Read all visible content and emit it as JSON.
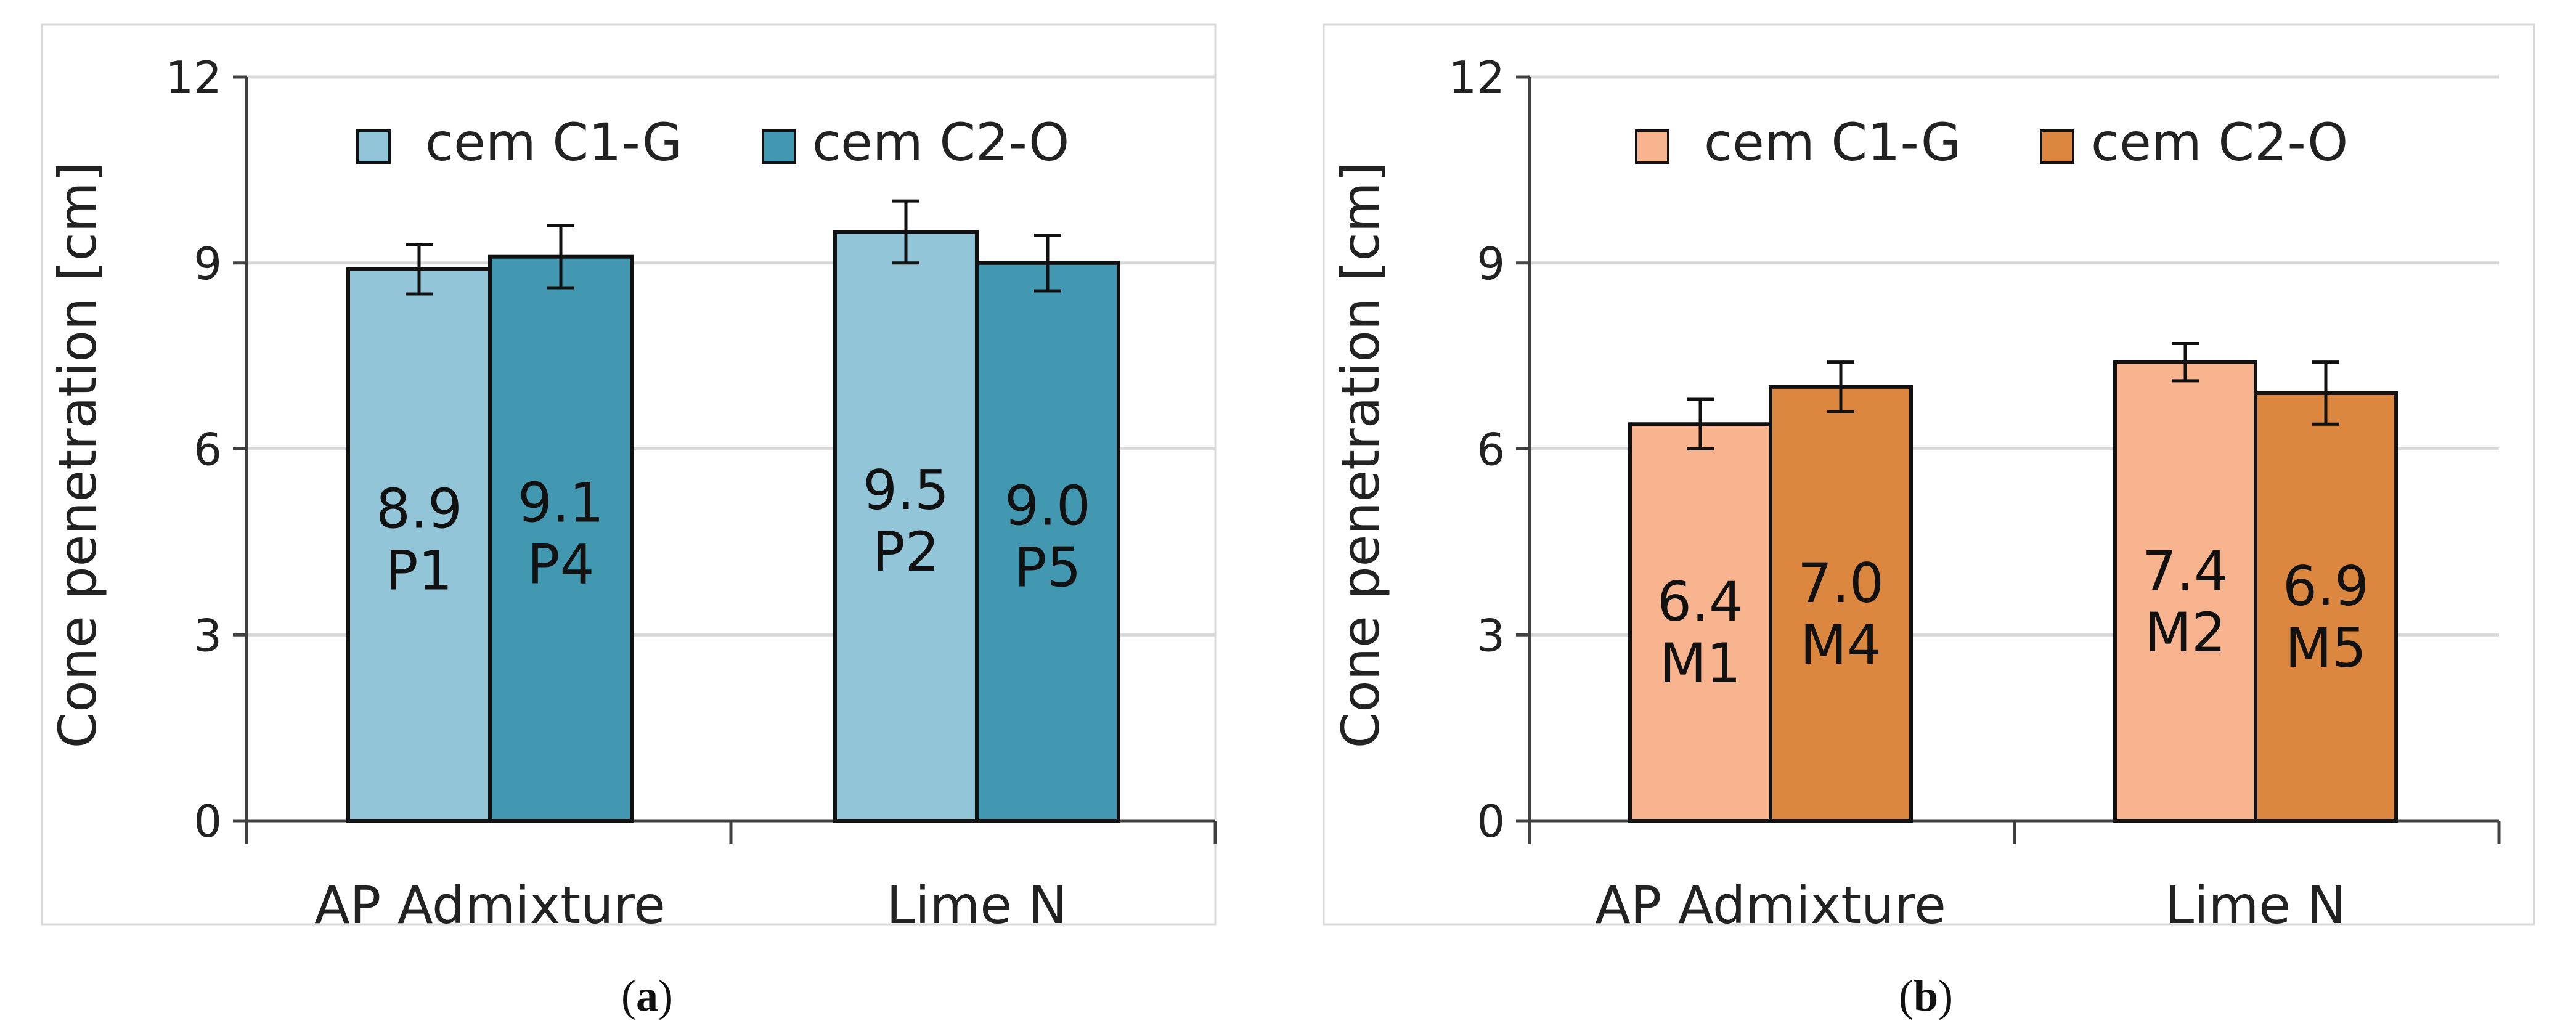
{
  "chart_data": [
    {
      "type": "bar",
      "panel_label": "a",
      "categories": [
        "AP Admixture",
        "Lime N"
      ],
      "ylabel": "Cone  penetration [cm]",
      "ylim": [
        0,
        12
      ],
      "yticks": [
        0,
        3,
        6,
        9,
        12
      ],
      "grid": true,
      "legend_position": "top",
      "series": [
        {
          "name": "cem C1-G",
          "color": "#92c5d8",
          "values": [
            8.9,
            9.5
          ],
          "errors": [
            0.4,
            0.5
          ],
          "labels": [
            "8.9",
            "9.5"
          ],
          "codes": [
            "P1",
            "P2"
          ]
        },
        {
          "name": "cem C2-O",
          "color": "#4198b0",
          "values": [
            9.1,
            9.0
          ],
          "errors": [
            0.5,
            0.45
          ],
          "labels": [
            "9.1",
            "9.0"
          ],
          "codes": [
            "P4",
            "P5"
          ]
        }
      ]
    },
    {
      "type": "bar",
      "panel_label": "b",
      "categories": [
        "AP Admixture",
        "Lime N"
      ],
      "ylabel": "Cone  penetration [cm]",
      "ylim": [
        0,
        12
      ],
      "yticks": [
        0,
        3,
        6,
        9,
        12
      ],
      "grid": true,
      "legend_position": "top",
      "series": [
        {
          "name": "cem C1-G",
          "color": "#f7b48f",
          "values": [
            6.4,
            7.4
          ],
          "errors": [
            0.4,
            0.3
          ],
          "labels": [
            "6.4",
            "7.4"
          ],
          "codes": [
            "M1",
            "M2"
          ]
        },
        {
          "name": "cem C2-O",
          "color": "#dc8740",
          "values": [
            7.0,
            6.9
          ],
          "errors": [
            0.4,
            0.5
          ],
          "labels": [
            "7.0",
            "6.9"
          ],
          "codes": [
            "M4",
            "M5"
          ]
        }
      ]
    }
  ]
}
